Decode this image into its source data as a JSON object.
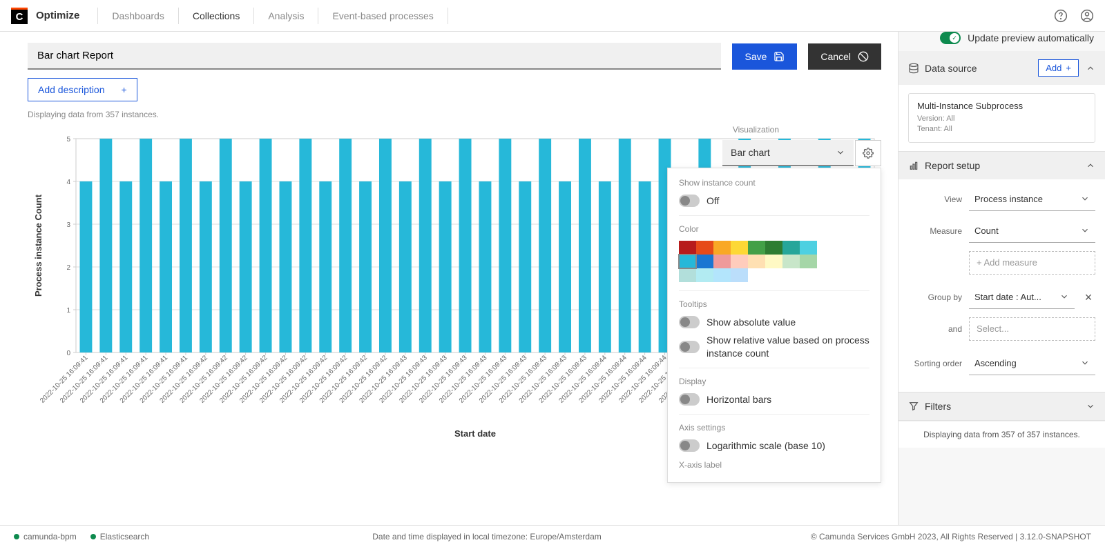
{
  "header": {
    "brand": "Optimize",
    "nav": [
      "Dashboards",
      "Collections",
      "Analysis",
      "Event-based processes"
    ],
    "active_index": 1
  },
  "title": {
    "value": "Bar chart Report",
    "save_label": "Save",
    "cancel_label": "Cancel",
    "add_desc_label": "Add description",
    "instances_text": "Displaying data from 357 instances."
  },
  "auto_preview": {
    "label": "Update preview automatically",
    "on": true
  },
  "viz": {
    "label": "Visualization",
    "selected": "Bar chart"
  },
  "settings": {
    "instance_count": {
      "section": "Show instance count",
      "toggle_label": "Off"
    },
    "color": {
      "section": "Color",
      "palette_row1": [
        "#b71c1c",
        "#e64a19",
        "#f9a825",
        "#fdd835",
        "#43a047",
        "#2e7d32",
        "#26a69a",
        "#4dd0e1",
        "#26b8d9",
        "#1976d2"
      ],
      "palette_row2": [
        "#ef9a9a",
        "#ffccbc",
        "#ffe0b2",
        "#fff9c4",
        "#c8e6c9",
        "#a5d6a7",
        "#b2dfdb",
        "#b2ebf2",
        "#b3e5fc",
        "#bbdefb"
      ],
      "selected_index": 8
    },
    "tooltips": {
      "section": "Tooltips",
      "abs_label": "Show absolute value",
      "rel_label": "Show relative value based on process instance count"
    },
    "display": {
      "section": "Display",
      "horiz_label": "Horizontal bars"
    },
    "axis": {
      "section": "Axis settings",
      "log_label": "Logarithmic scale (base 10)",
      "xaxis_label": "X-axis label"
    }
  },
  "chart": {
    "type": "bar",
    "bar_color": "#26b8d9",
    "background_color": "#ffffff",
    "grid_color": "#dddddd",
    "ylabel": "Process instance Count",
    "xlabel": "Start date",
    "ylim": [
      0,
      5
    ],
    "ytick_step": 1,
    "label_fontsize": 13,
    "tick_fontsize": 10,
    "categories": [
      "2022-10-25 16:09:41",
      "2022-10-25 16:09:41",
      "2022-10-25 16:09:41",
      "2022-10-25 16:09:41",
      "2022-10-25 16:09:41",
      "2022-10-25 16:09:41",
      "2022-10-25 16:09:42",
      "2022-10-25 16:09:42",
      "2022-10-25 16:09:42",
      "2022-10-25 16:09:42",
      "2022-10-25 16:09:42",
      "2022-10-25 16:09:42",
      "2022-10-25 16:09:42",
      "2022-10-25 16:09:42",
      "2022-10-25 16:09:42",
      "2022-10-25 16:09:42",
      "2022-10-25 16:09:43",
      "2022-10-25 16:09:43",
      "2022-10-25 16:09:43",
      "2022-10-25 16:09:43",
      "2022-10-25 16:09:43",
      "2022-10-25 16:09:43",
      "2022-10-25 16:09:43",
      "2022-10-25 16:09:43",
      "2022-10-25 16:09:43",
      "2022-10-25 16:09:43",
      "2022-10-25 16:09:44",
      "2022-10-25 16:09:44",
      "2022-10-25 16:09:44",
      "2022-10-25 16:09:44",
      "2022-10-25 16:09:44",
      "2022-10-25 16:09:44"
    ],
    "values": [
      4,
      5,
      4,
      5,
      4,
      5,
      4,
      5,
      4,
      5,
      4,
      5,
      4,
      5,
      4,
      5,
      4,
      5,
      4,
      5,
      4,
      5,
      4,
      5,
      4,
      5,
      4,
      5,
      4,
      5,
      4,
      5
    ],
    "bars_visible_count": 40,
    "extra_all_4_count": 8
  },
  "sidebar": {
    "data_source": {
      "title": "Data source",
      "add_label": "Add",
      "src_name": "Multi-Instance Subprocess",
      "version": "Version: All",
      "tenant": "Tenant: All"
    },
    "report_setup": {
      "title": "Report setup",
      "view_label": "View",
      "view_value": "Process instance",
      "measure_label": "Measure",
      "measure_value": "Count",
      "add_measure": "+ Add measure",
      "groupby_label": "Group by",
      "groupby_value": "Start date : Aut...",
      "and_label": "and",
      "and_placeholder": "Select...",
      "sort_label": "Sorting order",
      "sort_value": "Ascending"
    },
    "filters": {
      "title": "Filters"
    },
    "footer": "Displaying data from 357 of 357 instances."
  },
  "status": {
    "services": [
      "camunda-bpm",
      "Elasticsearch"
    ],
    "center": "Date and time displayed in local timezone: Europe/Amsterdam",
    "right": "© Camunda Services GmbH 2023, All Rights Reserved | 3.12.0-SNAPSHOT"
  }
}
